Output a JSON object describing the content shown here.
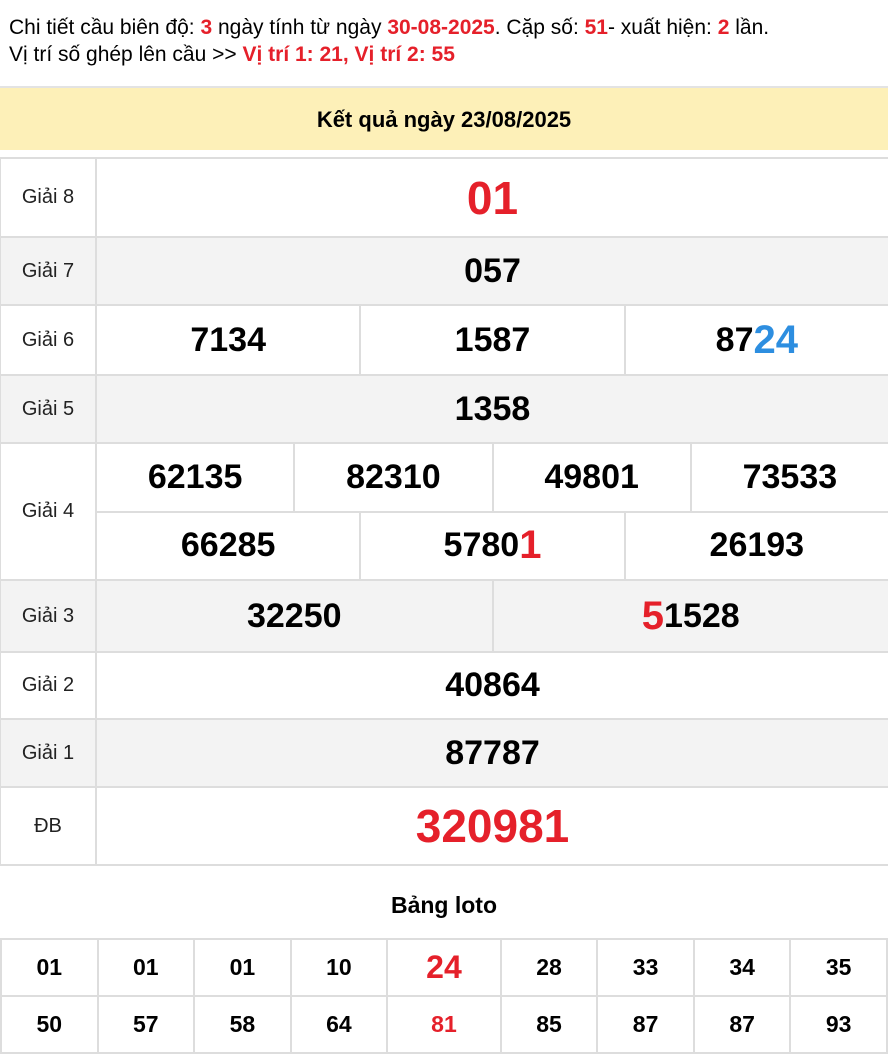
{
  "intro": {
    "t1": "Chi tiết cầu biên độ: ",
    "days": "3",
    "t2": " ngày tính từ ngày ",
    "date": "30-08-2025",
    "t3": ". Cặp số: ",
    "pair": "51",
    "t4": "- xuất hiện: ",
    "count": "2",
    "t5": " lần.",
    "t6": "Vị trí số ghép lên cầu >> ",
    "positions": "Vị trí 1: 21, Vị trí 2: 55"
  },
  "header": {
    "title": "Kết quả ngày 23/08/2025"
  },
  "prizes": {
    "g8": {
      "label": "Giải 8",
      "value": "01"
    },
    "g7": {
      "label": "Giải 7",
      "value": "057"
    },
    "g6": {
      "label": "Giải 6",
      "values": [
        "7134",
        "1587"
      ],
      "v3a": "87",
      "v3b": "24"
    },
    "g5": {
      "label": "Giải 5",
      "value": "1358"
    },
    "g4": {
      "label": "Giải 4",
      "row1": [
        "62135",
        "82310",
        "49801",
        "73533"
      ],
      "r2a": "66285",
      "r2b_a": "5780",
      "r2b_b": "1",
      "r2c": "26193"
    },
    "g3": {
      "label": "Giải 3",
      "v1": "32250",
      "v2a": "5",
      "v2b": "1528"
    },
    "g2": {
      "label": "Giải 2",
      "value": "40864"
    },
    "g1": {
      "label": "Giải 1",
      "value": "87787"
    },
    "db": {
      "label": "ĐB",
      "value": "320981"
    }
  },
  "colors": {
    "highlight_red": "#e5202a",
    "highlight_blue": "#2d8ee0",
    "header_bg": "#fdf0b8"
  },
  "loto": {
    "title": "Bảng loto",
    "row1": [
      "01",
      "01",
      "01",
      "10",
      "24",
      "28",
      "33",
      "34",
      "35"
    ],
    "row2": [
      "50",
      "57",
      "58",
      "64",
      "81",
      "85",
      "87",
      "87",
      "93"
    ]
  }
}
